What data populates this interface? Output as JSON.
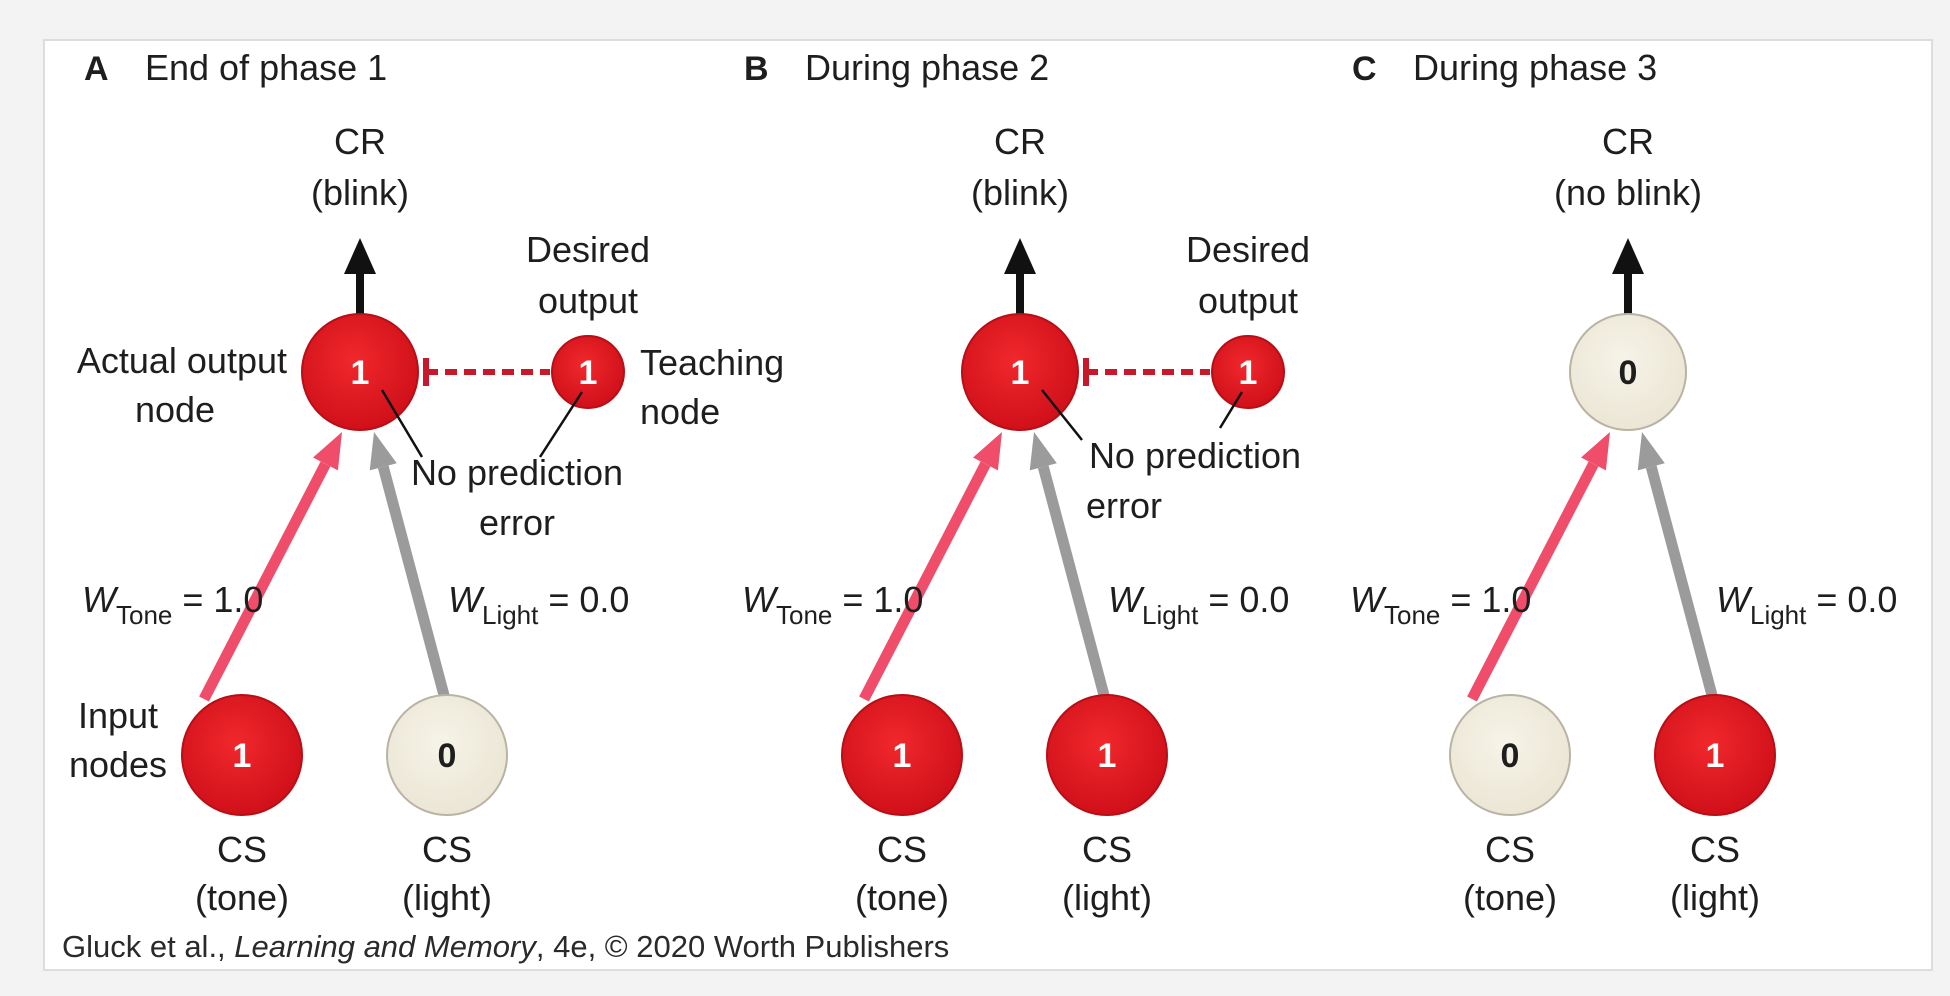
{
  "panels": [
    {
      "letter": "A",
      "title": "End of phase 1",
      "cr": {
        "line1": "CR",
        "line2": "(blink)"
      },
      "output_value": "1",
      "teaching": {
        "shown": true,
        "value": "1",
        "desired_line1": "Desired",
        "desired_line2": "output",
        "label_line1": "Teaching",
        "label_line2": "node"
      },
      "actual_output_label": {
        "line1": "Actual output",
        "line2": "node"
      },
      "no_error": {
        "line1": "No prediction",
        "line2": "error"
      },
      "w_tone": {
        "symbol": "W",
        "sub": "Tone",
        "value": " = 1.0"
      },
      "w_light": {
        "symbol": "W",
        "sub": "Light",
        "value": " = 0.0"
      },
      "input_nodes_label": {
        "line1": "Input",
        "line2": "nodes"
      },
      "inputs": [
        {
          "value": "1",
          "active": true,
          "label_line1": "CS",
          "label_line2": "(tone)"
        },
        {
          "value": "0",
          "active": false,
          "label_line1": "CS",
          "label_line2": "(light)"
        }
      ]
    },
    {
      "letter": "B",
      "title": "During phase 2",
      "cr": {
        "line1": "CR",
        "line2": "(blink)"
      },
      "output_value": "1",
      "teaching": {
        "shown": true,
        "value": "1",
        "desired_line1": "Desired",
        "desired_line2": "output"
      },
      "no_error": {
        "line1": "No prediction",
        "line2": "error"
      },
      "w_tone": {
        "symbol": "W",
        "sub": "Tone",
        "value": " = 1.0"
      },
      "w_light": {
        "symbol": "W",
        "sub": "Light",
        "value": " = 0.0"
      },
      "inputs": [
        {
          "value": "1",
          "active": true,
          "label_line1": "CS",
          "label_line2": "(tone)"
        },
        {
          "value": "1",
          "active": true,
          "label_line1": "CS",
          "label_line2": "(light)"
        }
      ]
    },
    {
      "letter": "C",
      "title": "During phase 3",
      "cr": {
        "line1": "CR",
        "line2": "(no blink)"
      },
      "output_value": "0",
      "teaching": {
        "shown": false
      },
      "w_tone": {
        "symbol": "W",
        "sub": "Tone",
        "value": " = 1.0"
      },
      "w_light": {
        "symbol": "W",
        "sub": "Light",
        "value": " = 0.0"
      },
      "inputs": [
        {
          "value": "0",
          "active": false,
          "label_line1": "CS",
          "label_line2": "(tone)"
        },
        {
          "value": "1",
          "active": true,
          "label_line1": "CS",
          "label_line2": "(light)"
        }
      ]
    }
  ],
  "credit": {
    "authors": "Gluck et al., ",
    "book": "Learning and Memory",
    "rest": ", 4e, © 2020 Worth Publishers"
  },
  "colors": {
    "active_node": "#e0161c",
    "inactive_node": "#f1ede0",
    "tone_arrow": "#ef4d6a",
    "light_arrow": "#9b9b9b",
    "dashed_link": "#c8182a",
    "text": "#1e1e1e",
    "panel_bg": "#ffffff",
    "page_bg": "#f3f3f3"
  }
}
